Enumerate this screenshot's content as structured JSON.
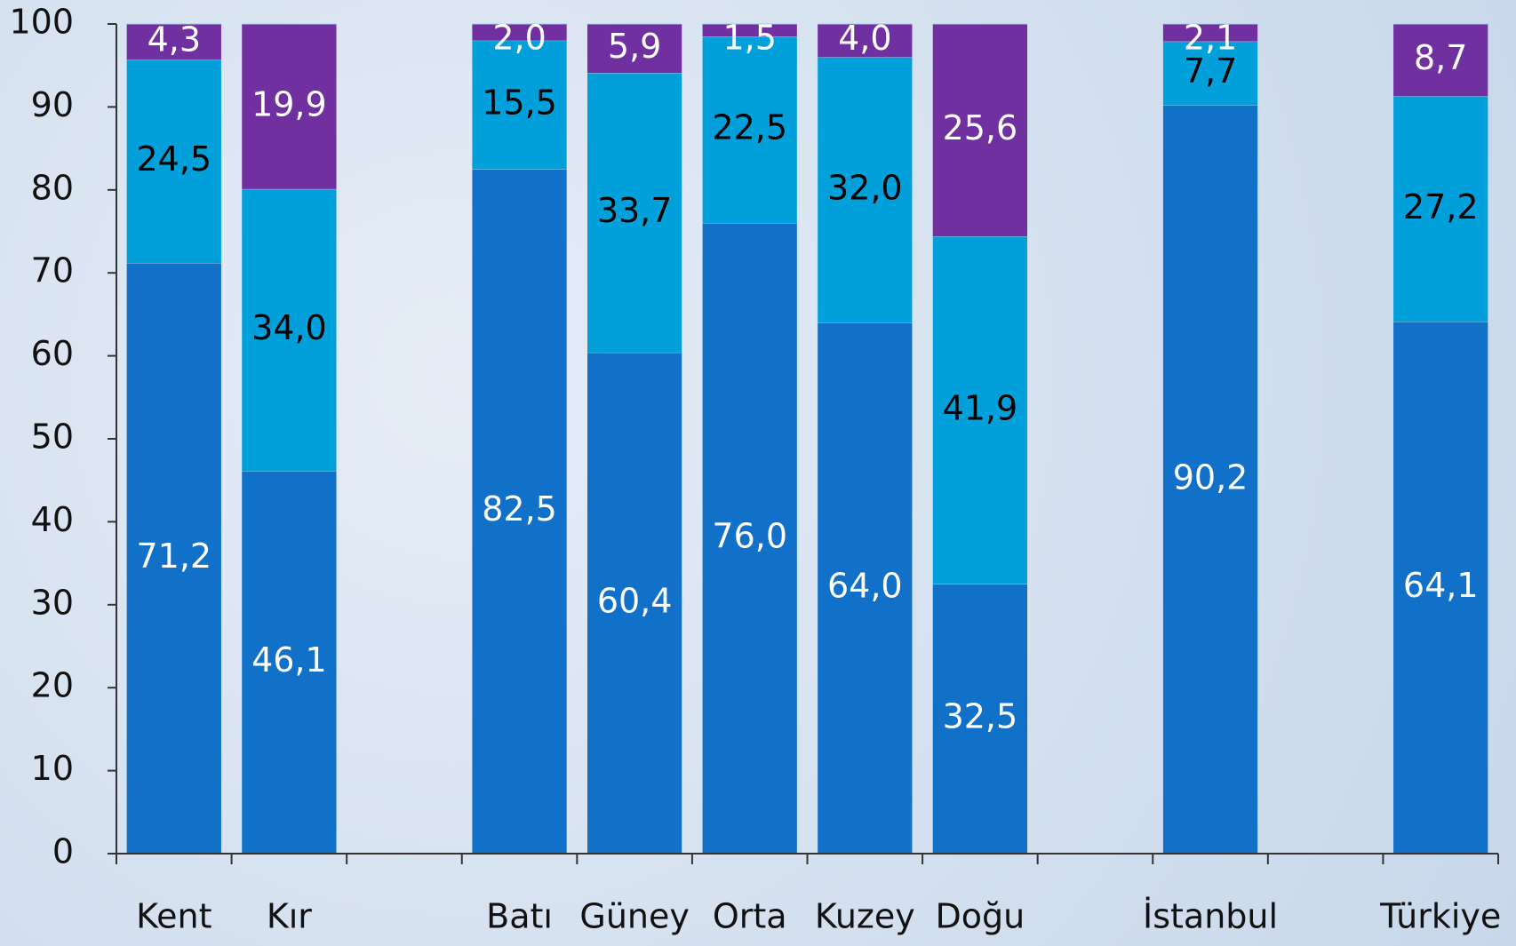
{
  "chart_data": {
    "type": "stacked_bar",
    "categories": [
      "Kent",
      "Kır",
      null,
      "Batı",
      "Güney",
      "Orta",
      "Kuzey",
      "Doğu",
      null,
      "İstanbul",
      null,
      "Türkiye"
    ],
    "series": [
      {
        "color": "#1170c8",
        "values": [
          71.2,
          46.1,
          null,
          82.5,
          60.4,
          76.0,
          64.0,
          32.5,
          null,
          90.2,
          null,
          64.1
        ],
        "value_labels": [
          "71,2",
          "46,1",
          null,
          "82,5",
          "60,4",
          "76,0",
          "64,0",
          "32,5",
          null,
          "90,2",
          null,
          "64,1"
        ]
      },
      {
        "color": "#02a0da",
        "values": [
          24.5,
          34.0,
          null,
          15.5,
          33.7,
          22.5,
          32.0,
          41.9,
          null,
          7.7,
          null,
          27.2
        ],
        "value_labels": [
          "24,5",
          "34,0",
          null,
          "15,5",
          "33,7",
          "22,5",
          "32,0",
          "41,9",
          null,
          "7,7",
          null,
          "27,2"
        ]
      },
      {
        "color": "#7030a0",
        "values": [
          4.3,
          19.9,
          null,
          2.0,
          5.9,
          1.5,
          4.0,
          25.6,
          null,
          2.1,
          null,
          8.7
        ],
        "value_labels": [
          "4,3",
          "19,9",
          null,
          "2,0",
          "5,9",
          "1,5",
          "4,0",
          "25,6",
          null,
          "2,1",
          null,
          "8,7"
        ]
      }
    ],
    "ylim": [
      0,
      100
    ],
    "yticks": [
      0,
      10,
      20,
      30,
      40,
      50,
      60,
      70,
      80,
      90,
      100
    ]
  }
}
